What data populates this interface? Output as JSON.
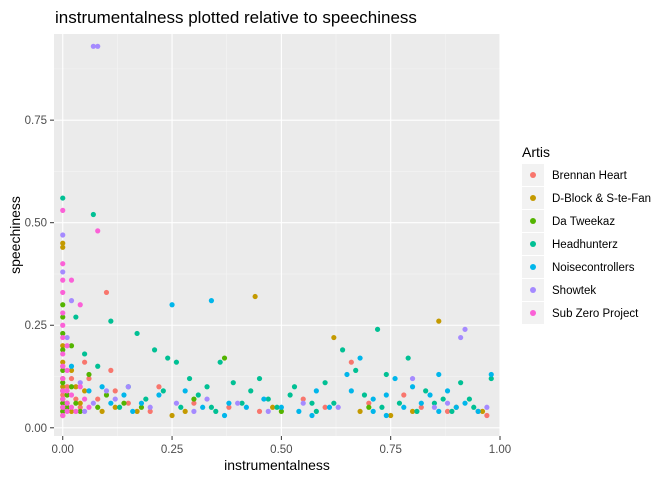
{
  "chart_data": {
    "type": "scatter",
    "title": "instrumentalness plotted relative to speechiness",
    "xlabel": "instrumentalness",
    "ylabel": "speechiness",
    "xlim": [
      -0.02,
      1.0
    ],
    "ylim": [
      -0.02,
      0.96
    ],
    "x_ticks": [
      {
        "value": 0.0,
        "label": "0.00"
      },
      {
        "value": 0.25,
        "label": "0.25"
      },
      {
        "value": 0.5,
        "label": "0.50"
      },
      {
        "value": 0.75,
        "label": "0.75"
      },
      {
        "value": 1.0,
        "label": "1.00"
      }
    ],
    "y_ticks": [
      {
        "value": 0.0,
        "label": "0.00"
      },
      {
        "value": 0.25,
        "label": "0.25"
      },
      {
        "value": 0.5,
        "label": "0.50"
      },
      {
        "value": 0.75,
        "label": "0.75"
      }
    ],
    "grid": true,
    "legend": {
      "title": "Artis",
      "position": "right"
    },
    "series": [
      {
        "name": "Brennan Heart",
        "color": "#F8766D",
        "points": [
          [
            0.0,
            0.04
          ],
          [
            0.0,
            0.06
          ],
          [
            0.01,
            0.05
          ],
          [
            0.0,
            0.08
          ],
          [
            0.02,
            0.12
          ],
          [
            0.03,
            0.07
          ],
          [
            0.05,
            0.16
          ],
          [
            0.06,
            0.12
          ],
          [
            0.08,
            0.07
          ],
          [
            0.1,
            0.33
          ],
          [
            0.11,
            0.14
          ],
          [
            0.12,
            0.09
          ],
          [
            0.15,
            0.06
          ],
          [
            0.2,
            0.04
          ],
          [
            0.22,
            0.1
          ],
          [
            0.3,
            0.06
          ],
          [
            0.38,
            0.05
          ],
          [
            0.45,
            0.04
          ],
          [
            0.55,
            0.07
          ],
          [
            0.6,
            0.05
          ],
          [
            0.66,
            0.16
          ],
          [
            0.7,
            0.06
          ],
          [
            0.78,
            0.08
          ],
          [
            0.82,
            0.05
          ],
          [
            0.88,
            0.04
          ],
          [
            0.95,
            0.04
          ],
          [
            0.97,
            0.03
          ],
          [
            0.0,
            0.15
          ],
          [
            0.01,
            0.1
          ],
          [
            0.04,
            0.05
          ]
        ]
      },
      {
        "name": "D-Block & S-te-Fan",
        "color": "#C49A00",
        "points": [
          [
            0.0,
            0.03
          ],
          [
            0.0,
            0.05
          ],
          [
            0.0,
            0.07
          ],
          [
            0.0,
            0.1
          ],
          [
            0.0,
            0.12
          ],
          [
            0.0,
            0.2
          ],
          [
            0.0,
            0.44
          ],
          [
            0.0,
            0.45
          ],
          [
            0.01,
            0.06
          ],
          [
            0.01,
            0.08
          ],
          [
            0.02,
            0.04
          ],
          [
            0.04,
            0.06
          ],
          [
            0.05,
            0.09
          ],
          [
            0.09,
            0.04
          ],
          [
            0.12,
            0.05
          ],
          [
            0.17,
            0.04
          ],
          [
            0.25,
            0.03
          ],
          [
            0.28,
            0.04
          ],
          [
            0.44,
            0.32
          ],
          [
            0.48,
            0.05
          ],
          [
            0.62,
            0.22
          ],
          [
            0.68,
            0.04
          ],
          [
            0.75,
            0.03
          ],
          [
            0.8,
            0.04
          ],
          [
            0.86,
            0.26
          ],
          [
            0.9,
            0.05
          ],
          [
            0.96,
            0.04
          ],
          [
            0.02,
            0.14
          ],
          [
            0.03,
            0.1
          ],
          [
            0.0,
            0.16
          ]
        ]
      },
      {
        "name": "Da Tweekaz",
        "color": "#53B400",
        "points": [
          [
            0.0,
            0.04
          ],
          [
            0.0,
            0.06
          ],
          [
            0.0,
            0.09
          ],
          [
            0.0,
            0.11
          ],
          [
            0.0,
            0.14
          ],
          [
            0.0,
            0.19
          ],
          [
            0.0,
            0.23
          ],
          [
            0.0,
            0.27
          ],
          [
            0.0,
            0.3
          ],
          [
            0.01,
            0.05
          ],
          [
            0.01,
            0.08
          ],
          [
            0.02,
            0.1
          ],
          [
            0.03,
            0.06
          ],
          [
            0.04,
            0.04
          ],
          [
            0.06,
            0.13
          ],
          [
            0.08,
            0.05
          ],
          [
            0.1,
            0.08
          ],
          [
            0.14,
            0.06
          ],
          [
            0.18,
            0.05
          ],
          [
            0.3,
            0.07
          ],
          [
            0.37,
            0.17
          ],
          [
            0.5,
            0.04
          ],
          [
            0.7,
            0.05
          ],
          [
            0.02,
            0.2
          ]
        ]
      },
      {
        "name": "Headhunterz",
        "color": "#00C094",
        "points": [
          [
            0.0,
            0.56
          ],
          [
            0.07,
            0.52
          ],
          [
            0.03,
            0.27
          ],
          [
            0.11,
            0.26
          ],
          [
            0.17,
            0.23
          ],
          [
            0.21,
            0.19
          ],
          [
            0.24,
            0.17
          ],
          [
            0.26,
            0.16
          ],
          [
            0.29,
            0.12
          ],
          [
            0.33,
            0.1
          ],
          [
            0.36,
            0.16
          ],
          [
            0.39,
            0.11
          ],
          [
            0.43,
            0.09
          ],
          [
            0.47,
            0.07
          ],
          [
            0.52,
            0.08
          ],
          [
            0.57,
            0.06
          ],
          [
            0.6,
            0.11
          ],
          [
            0.64,
            0.19
          ],
          [
            0.67,
            0.14
          ],
          [
            0.72,
            0.24
          ],
          [
            0.74,
            0.13
          ],
          [
            0.79,
            0.17
          ],
          [
            0.83,
            0.09
          ],
          [
            0.87,
            0.07
          ],
          [
            0.91,
            0.11
          ],
          [
            0.94,
            0.05
          ],
          [
            0.98,
            0.12
          ],
          [
            0.13,
            0.05
          ],
          [
            0.19,
            0.07
          ],
          [
            0.23,
            0.09
          ],
          [
            0.27,
            0.05
          ],
          [
            0.31,
            0.08
          ],
          [
            0.35,
            0.04
          ],
          [
            0.41,
            0.06
          ],
          [
            0.45,
            0.12
          ],
          [
            0.49,
            0.05
          ],
          [
            0.53,
            0.1
          ],
          [
            0.58,
            0.04
          ],
          [
            0.62,
            0.06
          ],
          [
            0.69,
            0.08
          ],
          [
            0.73,
            0.05
          ],
          [
            0.77,
            0.06
          ],
          [
            0.81,
            0.04
          ],
          [
            0.85,
            0.06
          ],
          [
            0.89,
            0.04
          ],
          [
            0.93,
            0.07
          ],
          [
            0.05,
            0.18
          ],
          [
            0.08,
            0.15
          ],
          [
            0.15,
            0.1
          ],
          [
            0.34,
            0.05
          ]
        ]
      },
      {
        "name": "Noisecontrollers",
        "color": "#00B6EB",
        "points": [
          [
            0.02,
            0.15
          ],
          [
            0.06,
            0.09
          ],
          [
            0.09,
            0.1
          ],
          [
            0.14,
            0.08
          ],
          [
            0.18,
            0.06
          ],
          [
            0.22,
            0.08
          ],
          [
            0.25,
            0.3
          ],
          [
            0.28,
            0.09
          ],
          [
            0.32,
            0.05
          ],
          [
            0.34,
            0.31
          ],
          [
            0.38,
            0.06
          ],
          [
            0.42,
            0.05
          ],
          [
            0.46,
            0.07
          ],
          [
            0.5,
            0.05
          ],
          [
            0.54,
            0.04
          ],
          [
            0.58,
            0.09
          ],
          [
            0.61,
            0.05
          ],
          [
            0.65,
            0.13
          ],
          [
            0.68,
            0.17
          ],
          [
            0.71,
            0.04
          ],
          [
            0.74,
            0.08
          ],
          [
            0.76,
            0.12
          ],
          [
            0.78,
            0.05
          ],
          [
            0.8,
            0.1
          ],
          [
            0.82,
            0.06
          ],
          [
            0.84,
            0.08
          ],
          [
            0.86,
            0.04
          ],
          [
            0.88,
            0.09
          ],
          [
            0.9,
            0.05
          ],
          [
            0.92,
            0.06
          ],
          [
            0.95,
            0.04
          ],
          [
            0.98,
            0.13
          ],
          [
            0.74,
            0.03
          ],
          [
            0.57,
            0.03
          ],
          [
            0.37,
            0.03
          ],
          [
            0.16,
            0.04
          ],
          [
            0.11,
            0.06
          ],
          [
            0.66,
            0.09
          ],
          [
            0.86,
            0.13
          ],
          [
            0.71,
            0.07
          ]
        ]
      },
      {
        "name": "Showtek",
        "color": "#A58AFF",
        "points": [
          [
            0.07,
            0.93
          ],
          [
            0.08,
            0.93
          ],
          [
            0.0,
            0.38
          ],
          [
            0.01,
            0.22
          ],
          [
            0.04,
            0.11
          ],
          [
            0.07,
            0.06
          ],
          [
            0.1,
            0.09
          ],
          [
            0.15,
            0.1
          ],
          [
            0.2,
            0.05
          ],
          [
            0.26,
            0.06
          ],
          [
            0.33,
            0.07
          ],
          [
            0.4,
            0.06
          ],
          [
            0.55,
            0.06
          ],
          [
            0.63,
            0.05
          ],
          [
            0.8,
            0.12
          ],
          [
            0.88,
            0.06
          ],
          [
            0.91,
            0.22
          ],
          [
            0.92,
            0.24
          ],
          [
            0.97,
            0.05
          ],
          [
            0.0,
            0.47
          ],
          [
            0.02,
            0.31
          ],
          [
            0.05,
            0.04
          ],
          [
            0.12,
            0.07
          ],
          [
            0.3,
            0.04
          ],
          [
            0.47,
            0.04
          ],
          [
            0.85,
            0.05
          ]
        ]
      },
      {
        "name": "Sub Zero Project",
        "color": "#FB61D7",
        "points": [
          [
            0.0,
            0.03
          ],
          [
            0.0,
            0.05
          ],
          [
            0.0,
            0.07
          ],
          [
            0.0,
            0.09
          ],
          [
            0.0,
            0.12
          ],
          [
            0.0,
            0.15
          ],
          [
            0.0,
            0.18
          ],
          [
            0.0,
            0.22
          ],
          [
            0.0,
            0.25
          ],
          [
            0.0,
            0.28
          ],
          [
            0.0,
            0.33
          ],
          [
            0.0,
            0.36
          ],
          [
            0.0,
            0.4
          ],
          [
            0.0,
            0.53
          ],
          [
            0.01,
            0.04
          ],
          [
            0.01,
            0.06
          ],
          [
            0.01,
            0.09
          ],
          [
            0.01,
            0.14
          ],
          [
            0.01,
            0.2
          ],
          [
            0.02,
            0.05
          ],
          [
            0.02,
            0.08
          ],
          [
            0.03,
            0.04
          ],
          [
            0.04,
            0.1
          ],
          [
            0.05,
            0.07
          ],
          [
            0.06,
            0.05
          ],
          [
            0.08,
            0.48
          ],
          [
            0.04,
            0.3
          ],
          [
            0.02,
            0.36
          ]
        ]
      }
    ]
  }
}
